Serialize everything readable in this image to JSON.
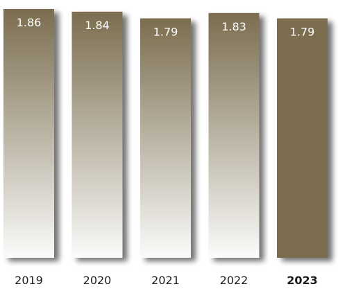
{
  "chart_data": {
    "type": "bar",
    "categories": [
      "2019",
      "2020",
      "2021",
      "2022",
      "2023"
    ],
    "values": [
      1.86,
      1.84,
      1.79,
      1.83,
      1.79
    ],
    "value_labels": [
      "1.86",
      "1.84",
      "1.79",
      "1.83",
      "1.79"
    ],
    "highlight_category": "2023",
    "title": "",
    "xlabel": "",
    "ylabel": "",
    "ylim": [
      0,
      1.86
    ],
    "grid": false,
    "legend": "none",
    "colors": {
      "bar_dark": "#7b6d4f",
      "bar_light": "#fbfbfa",
      "shadow": "#000000",
      "label_light": "#ffffff",
      "label_dark": "#1a1a1a"
    }
  }
}
